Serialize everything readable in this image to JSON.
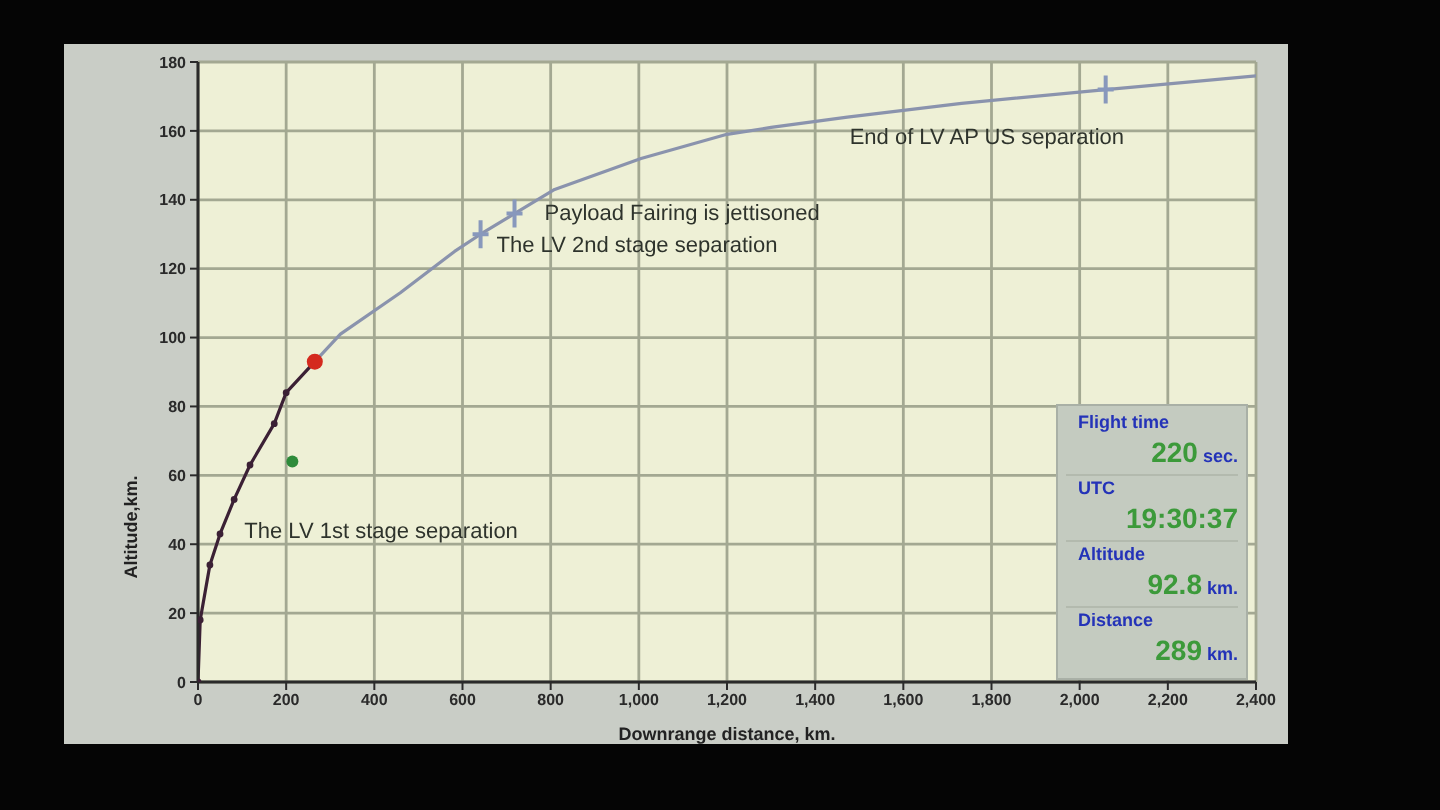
{
  "chart_data": {
    "type": "line",
    "xlabel": "Downrange distance, km.",
    "ylabel": "Altitude,km.",
    "xlim": [
      0,
      2400
    ],
    "xticks": [
      0,
      200,
      400,
      600,
      800,
      {
        "value": 1000,
        "label": "1,000"
      },
      {
        "value": 1200,
        "label": "1,200"
      },
      {
        "value": 1400,
        "label": "1,400"
      },
      {
        "value": 1600,
        "label": "1,600"
      },
      {
        "value": 1800,
        "label": "1,800"
      },
      {
        "value": 2000,
        "label": "2,000"
      },
      {
        "value": 2200,
        "label": "2,200"
      },
      {
        "value": 2400,
        "label": "2,400"
      }
    ],
    "ylim": [
      0,
      180
    ],
    "yticks": [
      0,
      20,
      40,
      60,
      80,
      100,
      120,
      140,
      160,
      180
    ],
    "grid": true,
    "series": [
      {
        "color": "#8a93ad",
        "marker": "none",
        "x": [
          265,
          323,
          459,
          582,
          641,
          718,
          809,
          1005,
          1200,
          1300,
          1473,
          1732,
          2059,
          2400
        ],
        "values": [
          93,
          101,
          113,
          125,
          130,
          136,
          143,
          152,
          159,
          161,
          164,
          168,
          172,
          176
        ]
      },
      {
        "color": "#3b2035",
        "marker": "circle",
        "x": [
          0,
          5,
          27,
          50,
          82,
          118,
          173,
          200,
          265
        ],
        "values": [
          0,
          18,
          34,
          43,
          53,
          63,
          75,
          84,
          93
        ]
      },
      {
        "type": "scatter",
        "color": "#d42a1e",
        "marker": "circle",
        "x": [
          265
        ],
        "values": [
          93
        ]
      },
      {
        "type": "scatter",
        "color": "#2e8b3a",
        "marker": "circle",
        "x": [
          214
        ],
        "values": [
          64
        ]
      },
      {
        "type": "scatter",
        "color": "#8898bc",
        "marker": "cross",
        "x": [
          641,
          718,
          2059
        ],
        "values": [
          130,
          136,
          172
        ]
      }
    ],
    "annotations": [
      {
        "text": "The LV 1st stage separation",
        "x": 214,
        "y": 64
      },
      {
        "text": "The LV 2nd stage separation",
        "x": 641,
        "y": 130
      },
      {
        "text": "Payload Fairing is jettisoned",
        "x": 718,
        "y": 136
      },
      {
        "text": "End of LV AP US separation",
        "x": 2059,
        "y": 172
      },
      "Flight time",
      "220 sec.",
      "UTC",
      "19:30:37",
      "Altitude",
      "92.8 km.",
      "Distance",
      "289 km."
    ]
  }
}
